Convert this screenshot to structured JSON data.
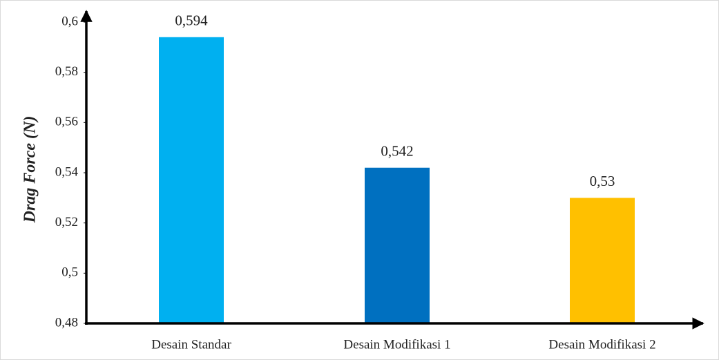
{
  "chart_data": {
    "type": "bar",
    "y_label": "Drag Force (N)",
    "categories": [
      "Desain Standar",
      "Desain Modifikasi 1",
      "Desain Modifikasi 2"
    ],
    "values": [
      0.594,
      0.542,
      0.53
    ],
    "value_labels": [
      "0,594",
      "0,542",
      "0,53"
    ],
    "colors": [
      "#00b0f0",
      "#0070c0",
      "#ffc000"
    ],
    "ylim": [
      0.48,
      0.6
    ],
    "yticks": [
      {
        "value": 0.48,
        "label": "0,48"
      },
      {
        "value": 0.5,
        "label": "0,5"
      },
      {
        "value": 0.52,
        "label": "0,52"
      },
      {
        "value": 0.54,
        "label": "0,54"
      },
      {
        "value": 0.56,
        "label": "0,56"
      },
      {
        "value": 0.58,
        "label": "0,58"
      },
      {
        "value": 0.6,
        "label": "0,6"
      }
    ],
    "grid": false
  }
}
